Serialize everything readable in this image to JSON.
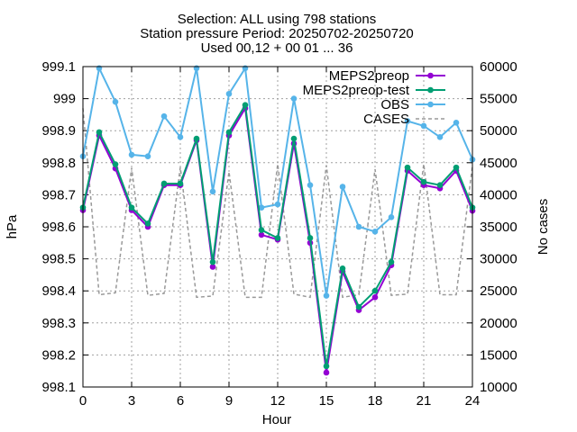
{
  "chart_data": {
    "type": "line",
    "title_lines": [
      "Selection: ALL using   798 stations",
      "Station pressure   Period: 20250702-20250720",
      "Used 00,12 + 00 01 ... 36"
    ],
    "xlabel": "Hour",
    "ylabel": "hPa",
    "y2label": "No cases",
    "xlim": [
      0,
      24
    ],
    "ylim": [
      998.1,
      999.1
    ],
    "y2lim": [
      10000,
      60000
    ],
    "x_ticks": [
      0,
      3,
      6,
      9,
      12,
      15,
      18,
      21,
      24
    ],
    "y_ticks": [
      "998.1",
      "998.2",
      "998.3",
      "998.4",
      "998.5",
      "998.6",
      "998.7",
      "998.8",
      "998.9",
      "999",
      "999.1"
    ],
    "y2_ticks": [
      "10000",
      "15000",
      "20000",
      "25000",
      "30000",
      "35000",
      "40000",
      "45000",
      "50000",
      "55000",
      "60000"
    ],
    "grid": true,
    "legend_position": "top-right",
    "x": [
      0,
      1,
      2,
      3,
      4,
      5,
      6,
      7,
      8,
      9,
      10,
      11,
      12,
      13,
      14,
      15,
      16,
      17,
      18,
      19,
      20,
      21,
      22,
      23,
      24
    ],
    "series": [
      {
        "name": "MEPS2preop",
        "color": "#9400d3",
        "axis": "left",
        "marker": "circle",
        "values": [
          998.652,
          998.885,
          998.782,
          998.652,
          998.6,
          998.73,
          998.73,
          998.87,
          998.475,
          998.885,
          998.97,
          998.575,
          998.56,
          998.86,
          998.55,
          998.145,
          998.46,
          998.34,
          998.38,
          998.48,
          998.775,
          998.73,
          998.72,
          998.775,
          998.65
        ]
      },
      {
        "name": "MEPS2preop-test",
        "color": "#009e73",
        "axis": "left",
        "marker": "circle",
        "values": [
          998.66,
          998.895,
          998.795,
          998.66,
          998.61,
          998.735,
          998.735,
          998.875,
          998.49,
          998.895,
          998.98,
          998.59,
          998.565,
          998.875,
          998.565,
          998.165,
          998.47,
          998.35,
          998.4,
          998.49,
          998.785,
          998.74,
          998.73,
          998.785,
          998.66
        ]
      },
      {
        "name": "OBS",
        "color": "#56b4e9",
        "axis": "left",
        "marker": "circle",
        "values": [
          998.82,
          999.095,
          998.99,
          998.825,
          998.82,
          998.945,
          998.88,
          999.095,
          998.71,
          999.015,
          999.095,
          998.66,
          998.67,
          999.0,
          998.73,
          998.385,
          998.725,
          998.6,
          998.585,
          998.63,
          998.93,
          998.915,
          998.88,
          998.925,
          998.81
        ]
      },
      {
        "name": "CASES",
        "color": "#999999",
        "axis": "right",
        "marker": "none",
        "dash": true,
        "values": [
          53500,
          24400,
          24700,
          44200,
          24300,
          24600,
          44300,
          24000,
          24200,
          43600,
          24000,
          24000,
          44800,
          24500,
          24000,
          44600,
          24000,
          24400,
          44000,
          24300,
          24500,
          44800,
          24400,
          24400,
          44500
        ]
      }
    ]
  }
}
